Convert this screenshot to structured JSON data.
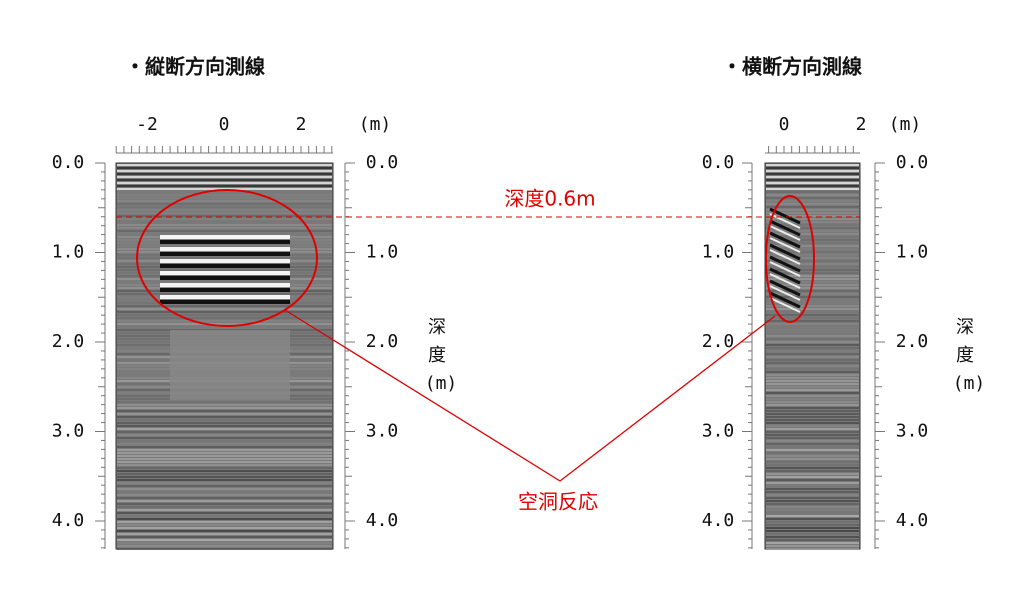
{
  "panels": [
    {
      "title": "・縦断方向測線",
      "x_ticks": [
        "-2",
        "0",
        "2"
      ],
      "x_unit": "(m)",
      "depth_ticks": [
        "0.0",
        "1.0",
        "2.0",
        "3.0",
        "4.0"
      ],
      "depth_label": [
        "深",
        "度",
        "(m)"
      ]
    },
    {
      "title": "・横断方向測線",
      "x_ticks": [
        "0",
        "2"
      ],
      "x_unit": "(m)",
      "depth_ticks": [
        "0.0",
        "1.0",
        "2.0",
        "3.0",
        "4.0"
      ],
      "depth_label": [
        "深",
        "度",
        "(m)"
      ]
    }
  ],
  "annotations": {
    "depth_line": "深度0.6m",
    "cavity": "空洞反応"
  }
}
